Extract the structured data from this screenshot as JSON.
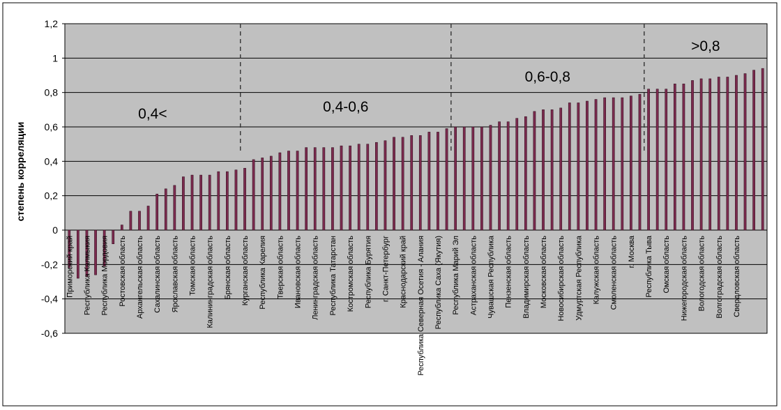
{
  "chart_data": {
    "type": "bar",
    "title": "",
    "xlabel": "",
    "ylabel": "степень корреляции",
    "ylim": [
      -0.6,
      1.2
    ],
    "yticks": [
      -0.6,
      -0.4,
      -0.2,
      0,
      0.2,
      0.4,
      0.6,
      0.8,
      1,
      1.2
    ],
    "ytick_labels": [
      "-0,6",
      "-0,4",
      "-0,2",
      "0",
      "0,2",
      "0,4",
      "0,6",
      "0,8",
      "1",
      "1,2"
    ],
    "grid": true,
    "bar_color": "#7b2a4e",
    "plot_bg": "#c0c0c0",
    "zones": [
      {
        "label": "0,4<",
        "start_index": 0,
        "end_index": 9
      },
      {
        "label": "0,4-0,6",
        "start_index": 10,
        "end_index": 21
      },
      {
        "label": "0,6-0,8",
        "start_index": 22,
        "end_index": 32
      },
      {
        "label": ">0,8",
        "start_index": 33,
        "end_index": 39
      }
    ],
    "category_labels": [
      "Приморский край",
      "Республика Калмыкия",
      "Республика Мордовия",
      "Ростовская область",
      "Архангельская область",
      "Сахалинская область",
      "Ярославская область",
      "Томская область",
      "Калининградская область",
      "Брянская область",
      "Курганская область",
      "Республика Карелия",
      "Тверская область",
      "Ивановская область",
      "Ленинградская область",
      "Республика Татарстан",
      "Костромская область",
      "Республика Бурятия",
      "г. Санкт-Петербург",
      "Краснодарский край",
      "Республика Северная Осетия - Алания",
      "Республика Саха (Якутия)",
      "Республика Марий Эл",
      "Астраханская область",
      "Чувашская Республика",
      "Пензенская область",
      "Владимирская область",
      "Московская область",
      "Новосибирская область",
      "Удмуртская Республика",
      "Калужская область",
      "Смоленская область",
      "г. Москва",
      "Республика Тыва",
      "Омская область",
      "Нижегородская область",
      "Вологодская область",
      "Волгоградская область",
      "Свердловская область"
    ],
    "values": [
      -0.22,
      -0.28,
      -0.27,
      -0.26,
      -0.21,
      -0.08,
      0.03,
      0.11,
      0.11,
      0.14,
      0.21,
      0.24,
      0.26,
      0.31,
      0.32,
      0.32,
      0.32,
      0.34,
      0.34,
      0.35,
      0.36,
      0.41,
      0.42,
      0.43,
      0.45,
      0.46,
      0.46,
      0.48,
      0.48,
      0.48,
      0.48,
      0.49,
      0.49,
      0.5,
      0.5,
      0.51,
      0.52,
      0.54,
      0.54,
      0.55,
      0.55,
      0.57,
      0.57,
      0.59,
      0.6,
      0.6,
      0.6,
      0.6,
      0.61,
      0.63,
      0.63,
      0.65,
      0.66,
      0.69,
      0.7,
      0.7,
      0.71,
      0.74,
      0.74,
      0.75,
      0.76,
      0.77,
      0.77,
      0.77,
      0.78,
      0.79,
      0.82,
      0.82,
      0.82,
      0.85,
      0.85,
      0.87,
      0.88,
      0.88,
      0.89,
      0.89,
      0.9,
      0.91,
      0.93,
      0.94
    ]
  }
}
